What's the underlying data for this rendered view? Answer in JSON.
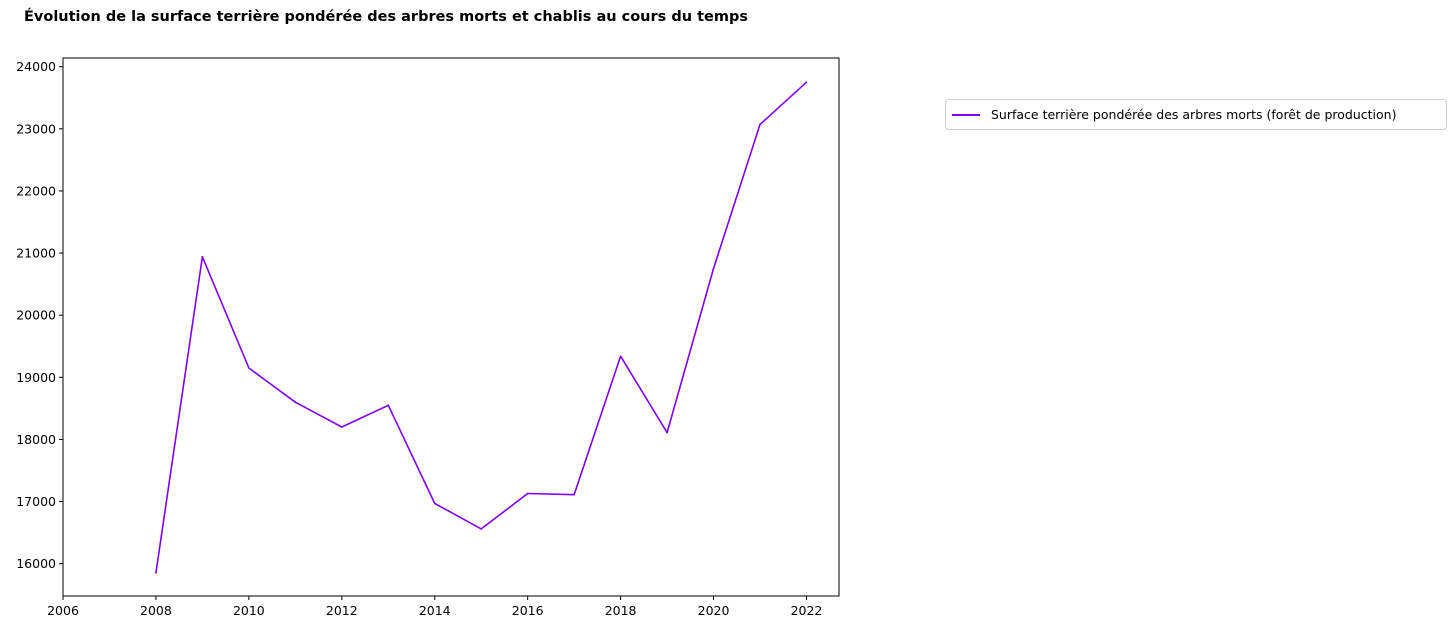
{
  "chart_data": {
    "type": "line",
    "title": "Évolution de la surface terrière pondérée des arbres morts et chablis au cours du temps",
    "xlabel": "",
    "ylabel": "",
    "xlim": [
      2006,
      2022.7
    ],
    "ylim": [
      15480,
      24140
    ],
    "xticks": [
      "2006",
      "2008",
      "2010",
      "2012",
      "2014",
      "2016",
      "2018",
      "2020",
      "2022"
    ],
    "yticks": [
      "16000",
      "17000",
      "18000",
      "19000",
      "20000",
      "21000",
      "22000",
      "23000",
      "24000"
    ],
    "grid": false,
    "legend_position": "outside right",
    "series": [
      {
        "name": "Surface terrière pondérée des arbres morts (forêt de production)",
        "color": "#8000ff",
        "x": [
          2008,
          2009,
          2010,
          2011,
          2012,
          2013,
          2014,
          2015,
          2016,
          2017,
          2018,
          2019,
          2020,
          2021,
          2022
        ],
        "values": [
          15850,
          20940,
          19150,
          18600,
          18200,
          18550,
          16970,
          16560,
          17130,
          17110,
          19340,
          18110,
          20750,
          23070,
          23750
        ]
      }
    ]
  }
}
